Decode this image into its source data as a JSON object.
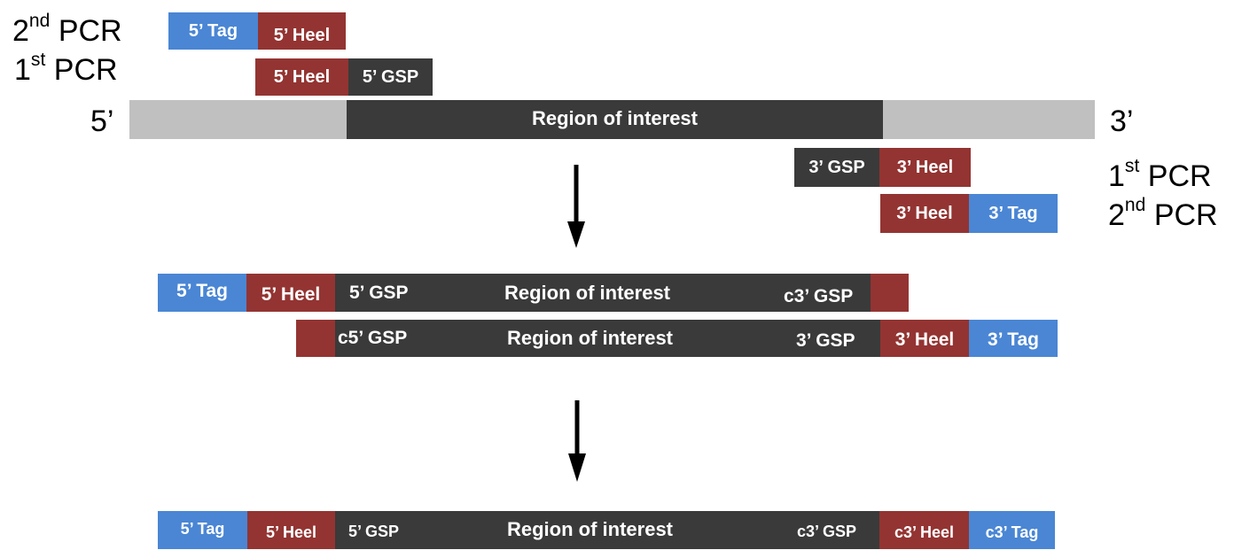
{
  "colors": {
    "tag": "#4a86d4",
    "heel": "#933432",
    "gsp_region": "#3a3a3a",
    "template_flank": "#c0c0c0"
  },
  "labels": {
    "second_pcr_left": {
      "number": "2",
      "suffix": "nd",
      "text": " PCR"
    },
    "first_pcr_left": {
      "number": "1",
      "suffix": "st",
      "text": " PCR"
    },
    "first_pcr_right": {
      "number": "1",
      "suffix": "st",
      "text": " PCR"
    },
    "second_pcr_right": {
      "number": "2",
      "suffix": "nd",
      "text": " PCR"
    },
    "five_prime_end": "5’",
    "three_prime_end": "3’"
  },
  "primers": {
    "fwd_2nd": {
      "tag": "5’ Tag",
      "heel": "5’ Heel"
    },
    "fwd_1st": {
      "heel": "5’ Heel",
      "gsp": "5’ GSP"
    },
    "rev_1st": {
      "gsp": "3’ GSP",
      "heel": "3’ Heel"
    },
    "rev_2nd": {
      "heel": "3’ Heel",
      "tag": "3’ Tag"
    }
  },
  "template": {
    "region": "Region of interest"
  },
  "intermediate": {
    "top_strand": {
      "tag": "5’ Tag",
      "heel": "5’ Heel",
      "gsp": "5’ GSP",
      "region": "Region of interest",
      "cgsp": "c3’ GSP"
    },
    "bottom_strand": {
      "cgsp": "c5’ GSP",
      "region": "Region of interest",
      "gsp": "3’ GSP",
      "heel": "3’ Heel",
      "tag": "3’ Tag"
    }
  },
  "final_product": {
    "tag": "5’ Tag",
    "heel": "5’ Heel",
    "gsp": "5’ GSP",
    "region": "Region of interest",
    "cgsp": "c3’ GSP",
    "cheel": "c3’ Heel",
    "ctag": "c3’ Tag"
  }
}
